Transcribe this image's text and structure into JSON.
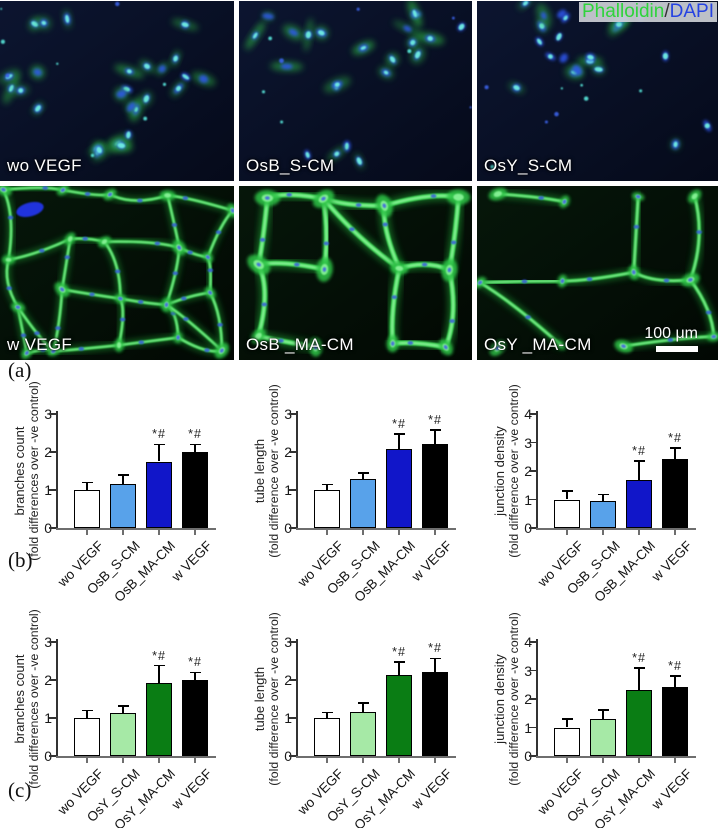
{
  "figure": {
    "section_a_label": "(a)",
    "section_b_label": "(b)",
    "section_c_label": "(c)",
    "legend": {
      "phalloidin": "Phalloidin",
      "slash": "/",
      "dapi": "DAPI",
      "phalloidin_color": "#2fd43c",
      "dapi_color": "#2643e2"
    },
    "scale_bar_text": "100 μm",
    "panels": [
      {
        "label": "wo VEGF"
      },
      {
        "label": "OsB_S-CM"
      },
      {
        "label": "OsY_S-CM"
      },
      {
        "label": "w VEGF"
      },
      {
        "label": "OsB _MA-CM"
      },
      {
        "label": "OsY _MA-CM"
      }
    ]
  },
  "colors": {
    "bar_white": "#ffffff",
    "bar_light_blue": "#58a2ea",
    "bar_dark_blue": "#1116c9",
    "bar_light_green": "#a6e9a6",
    "bar_dark_green": "#0a7d14",
    "bar_black": "#000000"
  },
  "chart_data": [
    {
      "type": "bar",
      "section": "b",
      "ylabel": "branches count",
      "ylabel2": "(fold differences over -ve control)",
      "ylim": [
        0,
        3
      ],
      "yticks": [
        0,
        1,
        2,
        3
      ],
      "categories": [
        "wo VEGF",
        "OsB_S-CM",
        "OsB_MA-CM",
        "w VEGF"
      ],
      "values": [
        1.0,
        1.15,
        1.75,
        2.0
      ],
      "errors": [
        0.2,
        0.25,
        0.45,
        0.2
      ],
      "annotations": [
        "",
        "",
        "*#",
        "*#"
      ],
      "bar_colors": [
        "#ffffff",
        "#58a2ea",
        "#1116c9",
        "#000000"
      ]
    },
    {
      "type": "bar",
      "section": "b",
      "ylabel": "tube length",
      "ylabel2": "(fold difference over -ve control)",
      "ylim": [
        0,
        3
      ],
      "yticks": [
        0,
        1,
        2,
        3
      ],
      "categories": [
        "wo VEGF",
        "OsB_S-CM",
        "OsB_MA-CM",
        "w VEGF"
      ],
      "values": [
        1.0,
        1.28,
        2.08,
        2.22
      ],
      "errors": [
        0.15,
        0.17,
        0.4,
        0.36
      ],
      "annotations": [
        "",
        "",
        "*#",
        "*#"
      ],
      "bar_colors": [
        "#ffffff",
        "#58a2ea",
        "#1116c9",
        "#000000"
      ]
    },
    {
      "type": "bar",
      "section": "b",
      "ylabel": "junction density",
      "ylabel2": "(fold difference over -ve control)",
      "ylim": [
        0,
        4
      ],
      "yticks": [
        0,
        1,
        2,
        3,
        4
      ],
      "categories": [
        "wo VEGF",
        "OsB_S-CM",
        "OsB_MA-CM",
        "w VEGF"
      ],
      "values": [
        1.0,
        0.95,
        1.7,
        2.42
      ],
      "errors": [
        0.3,
        0.23,
        0.65,
        0.38
      ],
      "annotations": [
        "",
        "",
        "*#",
        "*#"
      ],
      "bar_colors": [
        "#ffffff",
        "#58a2ea",
        "#1116c9",
        "#000000"
      ]
    },
    {
      "type": "bar",
      "section": "c",
      "ylabel": "branches count",
      "ylabel2": "(fold differences over -ve control)",
      "ylim": [
        0,
        3
      ],
      "yticks": [
        0,
        1,
        2,
        3
      ],
      "categories": [
        "wo VEGF",
        "OsY_S-CM",
        "OsY_MA-CM",
        "w VEGF"
      ],
      "values": [
        1.0,
        1.13,
        1.93,
        2.0
      ],
      "errors": [
        0.2,
        0.19,
        0.45,
        0.2
      ],
      "annotations": [
        "",
        "",
        "*#",
        "*#"
      ],
      "bar_colors": [
        "#ffffff",
        "#a6e9a6",
        "#0a7d14",
        "#000000"
      ]
    },
    {
      "type": "bar",
      "section": "c",
      "ylabel": "tube length",
      "ylabel2": "(fold difference over -ve control)",
      "ylim": [
        0,
        3
      ],
      "yticks": [
        0,
        1,
        2,
        3
      ],
      "categories": [
        "wo VEGF",
        "OsY_S-CM",
        "OsY_MA-CM",
        "w VEGF"
      ],
      "values": [
        1.0,
        1.16,
        2.14,
        2.2
      ],
      "errors": [
        0.15,
        0.24,
        0.34,
        0.37
      ],
      "annotations": [
        "",
        "",
        "*#",
        "*#"
      ],
      "bar_colors": [
        "#ffffff",
        "#a6e9a6",
        "#0a7d14",
        "#000000"
      ]
    },
    {
      "type": "bar",
      "section": "c",
      "ylabel": "junction density",
      "ylabel2": "(fold difference over -ve control)",
      "ylim": [
        0,
        4
      ],
      "yticks": [
        0,
        1,
        2,
        3,
        4
      ],
      "categories": [
        "wo VEGF",
        "OsY_S-CM",
        "OsY_MA-CM",
        "w VEGF"
      ],
      "values": [
        1.0,
        1.3,
        2.33,
        2.43
      ],
      "errors": [
        0.3,
        0.32,
        0.77,
        0.37
      ],
      "annotations": [
        "",
        "",
        "*#",
        "*#"
      ],
      "bar_colors": [
        "#ffffff",
        "#a6e9a6",
        "#0a7d14",
        "#000000"
      ]
    }
  ]
}
